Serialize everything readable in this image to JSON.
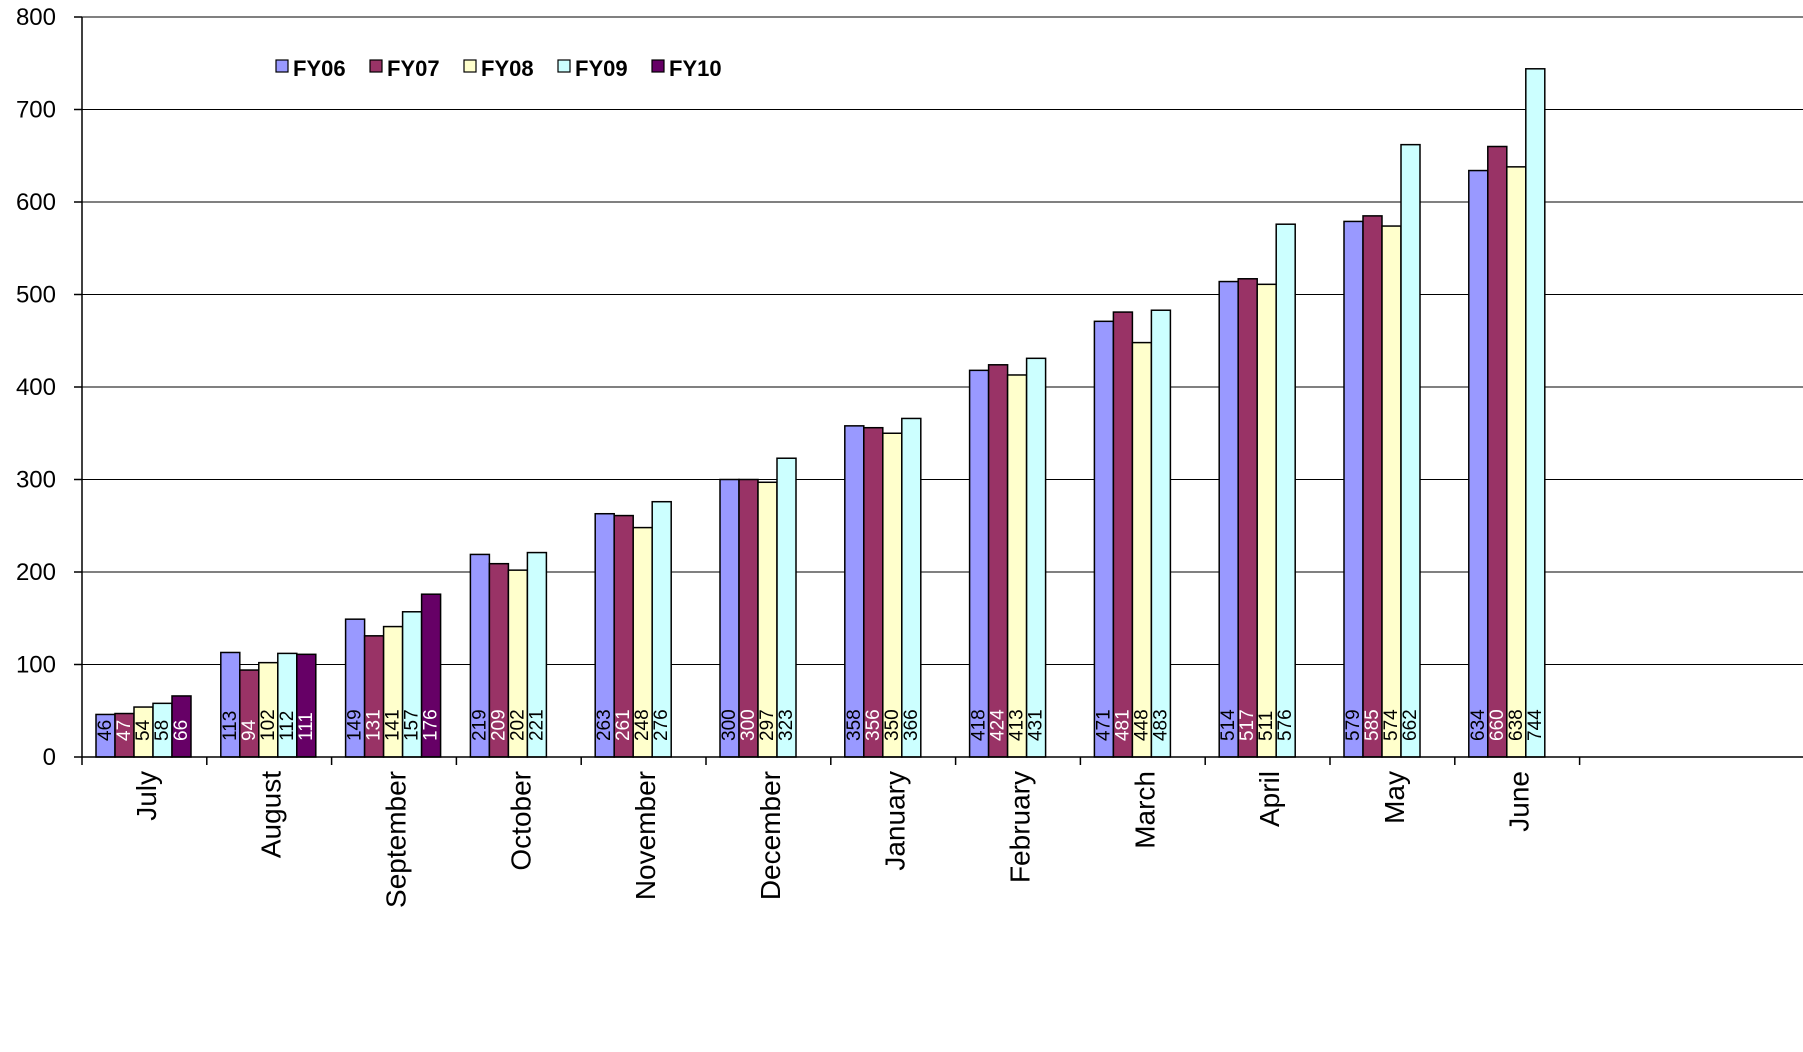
{
  "chart_data": {
    "type": "bar",
    "title": "",
    "xlabel": "",
    "ylabel": "",
    "ylim": [
      0,
      800
    ],
    "yticks": [
      0,
      100,
      200,
      300,
      400,
      500,
      600,
      700,
      800
    ],
    "grid": true,
    "legend_position": "top-left",
    "categories": [
      "July",
      "August",
      "September",
      "October",
      "November",
      "December",
      "January",
      "February",
      "March",
      "April",
      "May",
      "June"
    ],
    "series": [
      {
        "name": "FY06",
        "color": "#9999ff",
        "label_color": "#000000",
        "values": [
          46,
          113,
          149,
          219,
          263,
          300,
          358,
          418,
          471,
          514,
          579,
          634
        ]
      },
      {
        "name": "FY07",
        "color": "#993366",
        "label_color": "#ffffff",
        "values": [
          47,
          94,
          131,
          209,
          261,
          300,
          356,
          424,
          481,
          517,
          585,
          660
        ]
      },
      {
        "name": "FY08",
        "color": "#ffffcc",
        "label_color": "#000000",
        "values": [
          54,
          102,
          141,
          202,
          248,
          297,
          350,
          413,
          448,
          511,
          574,
          638
        ]
      },
      {
        "name": "FY09",
        "color": "#ccffff",
        "label_color": "#000000",
        "values": [
          58,
          112,
          157,
          221,
          276,
          323,
          366,
          431,
          483,
          576,
          662,
          744
        ]
      },
      {
        "name": "FY10",
        "color": "#660066",
        "label_color": "#ffffff",
        "values": [
          66,
          111,
          176,
          null,
          null,
          null,
          null,
          null,
          null,
          null,
          null,
          null
        ]
      }
    ]
  }
}
